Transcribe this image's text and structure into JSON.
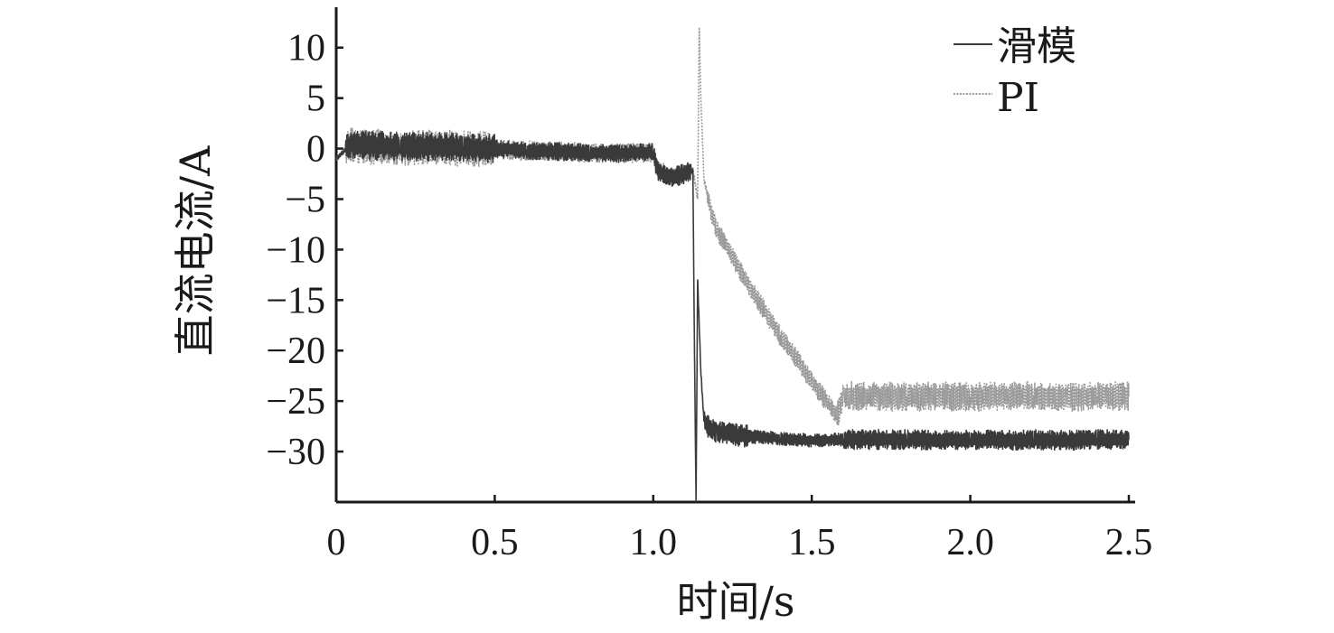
{
  "chart_data": {
    "type": "line",
    "title": "",
    "xlabel": "时间/s",
    "ylabel": "直流电流/A",
    "xlim": [
      0,
      2.52
    ],
    "ylim": [
      -35,
      14
    ],
    "x_ticks": [
      0,
      0.5,
      1.0,
      1.5,
      2.0,
      2.5
    ],
    "x_tick_labels": [
      "0",
      "0.5",
      "1.0",
      "1.5",
      "2.0",
      "2.5"
    ],
    "y_ticks": [
      10,
      5,
      0,
      -5,
      -10,
      -15,
      -20,
      -25,
      -30
    ],
    "y_tick_labels": [
      "10",
      "5",
      "0",
      "−5",
      "−10",
      "−15",
      "−20",
      "−25",
      "−30"
    ],
    "grid": false,
    "legend_position": "top-right",
    "series": [
      {
        "name": "滑模",
        "color": "#3a3a3a",
        "line_style": "solid",
        "x": [
          0,
          0.05,
          0.1,
          0.2,
          0.3,
          0.4,
          0.5,
          0.6,
          0.7,
          0.8,
          0.9,
          1.0,
          1.01,
          1.03,
          1.06,
          1.1,
          1.125,
          1.13,
          1.135,
          1.14,
          1.15,
          1.16,
          1.18,
          1.2,
          1.25,
          1.3,
          1.4,
          1.5,
          1.6,
          1.7,
          1.8,
          1.9,
          2.0,
          2.1,
          2.2,
          2.3,
          2.4,
          2.5
        ],
        "y": [
          -1,
          0.5,
          0.3,
          0.2,
          0.2,
          0.1,
          0,
          -0.2,
          -0.3,
          -0.4,
          -0.5,
          -0.3,
          -2,
          -2.5,
          -2.8,
          -2.5,
          -2.2,
          -20,
          -35,
          -13,
          -22,
          -27,
          -27.8,
          -28,
          -28.3,
          -28.5,
          -28.7,
          -28.9,
          -28.8,
          -28.8,
          -28.8,
          -28.9,
          -28.8,
          -28.9,
          -28.8,
          -28.9,
          -28.8,
          -28.8
        ]
      },
      {
        "name": "PI",
        "color": "#9a9a9a",
        "line_style": "dotted",
        "x": [
          0,
          0.05,
          0.1,
          0.2,
          0.3,
          0.4,
          0.5,
          0.6,
          0.7,
          0.8,
          0.9,
          1.0,
          1.01,
          1.03,
          1.06,
          1.1,
          1.125,
          1.14,
          1.145,
          1.15,
          1.16,
          1.18,
          1.2,
          1.3,
          1.4,
          1.5,
          1.58,
          1.6,
          1.62,
          1.7,
          1.8,
          1.9,
          2.0,
          2.1,
          2.2,
          2.3,
          2.4,
          2.5
        ],
        "y": [
          -1,
          0.3,
          0.2,
          0.1,
          0.1,
          0,
          0,
          -0.2,
          -0.3,
          -0.4,
          -0.5,
          -0.3,
          -1.8,
          -2.3,
          -2.6,
          -2.4,
          -2.1,
          -5,
          12,
          5,
          -3,
          -6,
          -8,
          -13.5,
          -18.5,
          -23,
          -26.5,
          -24.5,
          -24.5,
          -24.5,
          -24.6,
          -24.5,
          -24.6,
          -24.5,
          -24.5,
          -24.6,
          -24.5,
          -24.5
        ]
      }
    ]
  }
}
